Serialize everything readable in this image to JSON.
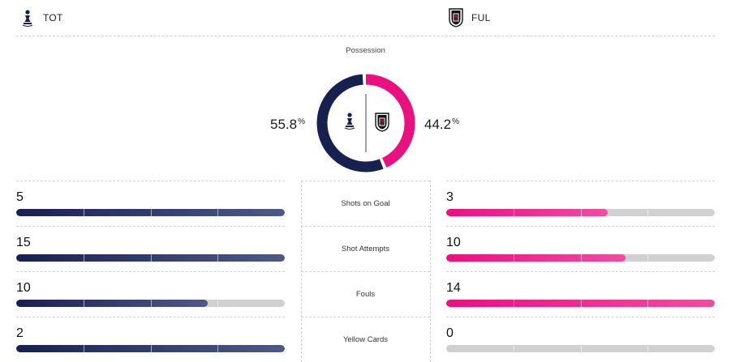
{
  "teams": {
    "home": {
      "abbr": "TOT",
      "crest": "tottenham-crest-icon",
      "color": "#17214f"
    },
    "away": {
      "abbr": "FUL",
      "crest": "fulham-crest-icon",
      "color": "#e8117f"
    }
  },
  "possession": {
    "title": "Possession",
    "home_value": "55.8",
    "away_value": "44.2",
    "unit": "%",
    "home_fraction": 0.558,
    "away_fraction": 0.442
  },
  "stats": [
    {
      "label": "Shots on Goal",
      "home": "5",
      "away": "3",
      "home_fill": 1.0,
      "away_fill": 0.6
    },
    {
      "label": "Shot Attempts",
      "home": "15",
      "away": "10",
      "home_fill": 1.0,
      "away_fill": 0.667
    },
    {
      "label": "Fouls",
      "home": "10",
      "away": "14",
      "home_fill": 0.714,
      "away_fill": 1.0
    },
    {
      "label": "Yellow Cards",
      "home": "2",
      "away": "0",
      "home_fill": 1.0,
      "away_fill": 0.0
    }
  ]
}
